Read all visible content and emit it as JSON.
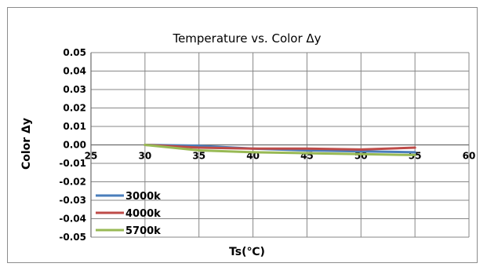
{
  "chart_data": {
    "type": "line",
    "title": "Temperature vs. Color Δy",
    "xlabel": "Ts(℃)",
    "ylabel": "Color Δy",
    "xlim": [
      25,
      60
    ],
    "ylim": [
      -0.05,
      0.05
    ],
    "x_ticks": [
      "25",
      "30",
      "35",
      "40",
      "45",
      "50",
      "55",
      "60"
    ],
    "y_ticks": [
      "0.05",
      "0.04",
      "0.03",
      "0.02",
      "0.01",
      "0.00",
      "-0.01",
      "-0.02",
      "-0.03",
      "-0.04",
      "-0.05"
    ],
    "grid": true,
    "legend_position": "bottom-left",
    "x": [
      30,
      35,
      40,
      45,
      50,
      55
    ],
    "series": [
      {
        "name": "3000k",
        "color": "#4a7ebb",
        "values": [
          0.0,
          -0.0005,
          -0.002,
          -0.003,
          -0.0035,
          -0.004
        ]
      },
      {
        "name": "4000k",
        "color": "#be4b48",
        "values": [
          0.0,
          -0.0015,
          -0.002,
          -0.002,
          -0.0025,
          -0.0015
        ]
      },
      {
        "name": "5700k",
        "color": "#98b954",
        "values": [
          0.0,
          -0.003,
          -0.004,
          -0.0045,
          -0.005,
          -0.0055
        ]
      }
    ]
  }
}
